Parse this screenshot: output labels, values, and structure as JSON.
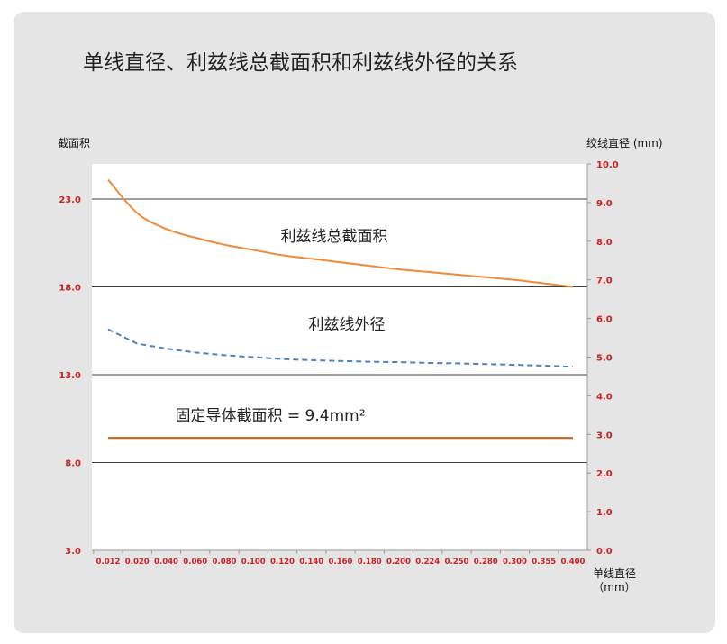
{
  "title": "单线直径、利兹线总截面积和利兹线外径的关系",
  "chart_data": {
    "type": "line",
    "title": "单线直径、利兹线总截面积和利兹线外径的关系",
    "xlabel_line1": "单线直径",
    "xlabel_line2": "（mm）",
    "ylabel_left": "截面积",
    "ylabel_right": "绞线直径 (mm)",
    "categories": [
      "0.012",
      "0.020",
      "0.040",
      "0.060",
      "0.080",
      "0.100",
      "0.120",
      "0.140",
      "0.160",
      "0.180",
      "0.200",
      "0.224",
      "0.250",
      "0.280",
      "0.300",
      "0.355",
      "0.400"
    ],
    "left_axis": {
      "min": 3.0,
      "max": 25.0,
      "ticks": [
        3.0,
        8.0,
        13.0,
        18.0,
        23.0
      ],
      "tick_labels": [
        "3.0",
        "8.0",
        "13.0",
        "18.0",
        "23.0"
      ]
    },
    "right_axis": {
      "min": 0.0,
      "max": 10.0,
      "ticks": [
        0,
        1,
        2,
        3,
        4,
        5,
        6,
        7,
        8,
        9,
        10
      ],
      "tick_labels": [
        "0.0",
        "1.0",
        "2.0",
        "3.0",
        "4.0",
        "5.0",
        "6.0",
        "7.0",
        "8.0",
        "9.0",
        "10.0"
      ]
    },
    "grid": "horizontal",
    "series": [
      {
        "name": "利兹线总截面积",
        "axis": "left",
        "style": "solid",
        "color": "#ee8a3c",
        "values": [
          24.1,
          22.2,
          21.3,
          20.8,
          20.4,
          20.1,
          19.8,
          19.6,
          19.4,
          19.2,
          19.0,
          18.85,
          18.7,
          18.55,
          18.4,
          18.2,
          18.0
        ]
      },
      {
        "name": "利兹线外径",
        "axis": "right",
        "style": "dashed",
        "color": "#4f81bd",
        "values": [
          5.72,
          5.35,
          5.22,
          5.12,
          5.05,
          5.0,
          4.95,
          4.92,
          4.9,
          4.88,
          4.87,
          4.85,
          4.84,
          4.82,
          4.8,
          4.78,
          4.75
        ]
      },
      {
        "name": "固定导体截面积 = 9.4mm²",
        "axis": "left",
        "style": "solid",
        "color": "#c0651b",
        "values": [
          9.4,
          9.4,
          9.4,
          9.4,
          9.4,
          9.4,
          9.4,
          9.4,
          9.4,
          9.4,
          9.4,
          9.4,
          9.4,
          9.4,
          9.4,
          9.4,
          9.4
        ]
      }
    ],
    "colors": {
      "tick_label": "#cc2222",
      "gridline": "#404040",
      "plot_background": "#ffffff"
    }
  }
}
